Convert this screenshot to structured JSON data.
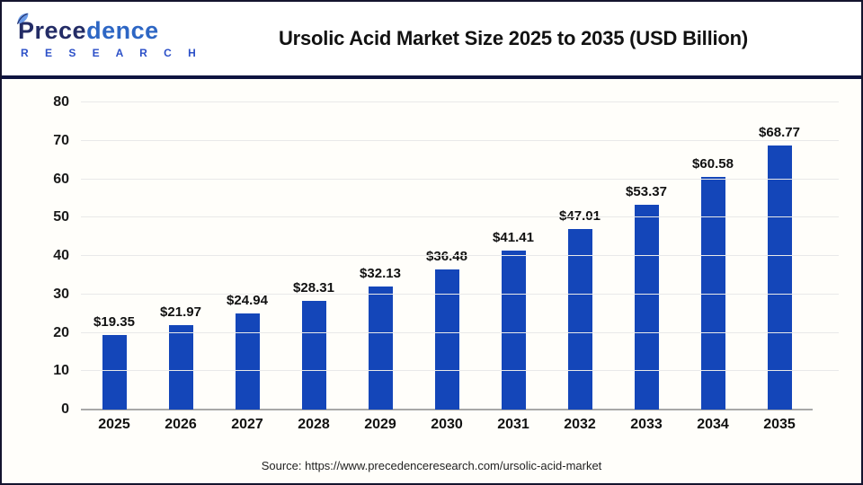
{
  "header": {
    "title": "Ursolic Acid Market Size 2025 to 2035 (USD Billion)"
  },
  "logo": {
    "name_part1": "Prece",
    "name_part2": "dence",
    "subtitle": "R E S E A R C H"
  },
  "footer": {
    "source": "Source: https://www.precedenceresearch.com/ursolic-acid-market"
  },
  "colors": {
    "bar": "#1446b9",
    "divider": "#0e1440",
    "gridline": "#e9e9e9",
    "baseline": "#a8a8a8",
    "logo_navy": "#232c66",
    "logo_blue": "#2d66c4",
    "research_blue": "#2c50c8"
  },
  "chart_data": {
    "type": "bar",
    "title": "Ursolic Acid Market Size 2025 to 2035 (USD Billion)",
    "categories": [
      "2025",
      "2026",
      "2027",
      "2028",
      "2029",
      "2030",
      "2031",
      "2032",
      "2033",
      "2034",
      "2035"
    ],
    "values": [
      19.35,
      21.97,
      24.94,
      28.31,
      32.13,
      36.48,
      41.41,
      47.01,
      53.37,
      60.58,
      68.77
    ],
    "bar_labels": [
      "$19.35",
      "$21.97",
      "$24.94",
      "$28.31",
      "$32.13",
      "$36.48",
      "$41.41",
      "$47.01",
      "$53.37",
      "$60.58",
      "$68.77"
    ],
    "xlabel": "",
    "ylabel": "",
    "ylim": [
      0,
      80
    ],
    "yticks": [
      0,
      10,
      20,
      30,
      40,
      50,
      60,
      70,
      80
    ],
    "grid": true,
    "legend": false,
    "bar_color": "#1446b9"
  }
}
